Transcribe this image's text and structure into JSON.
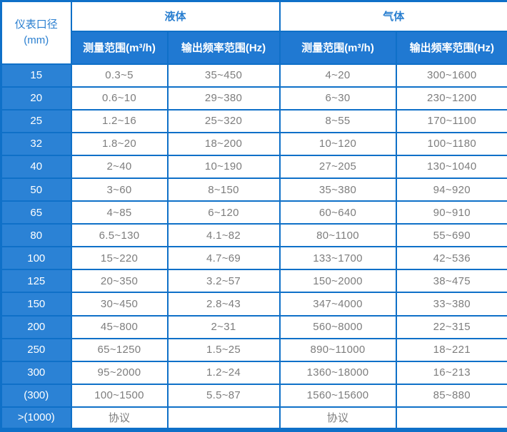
{
  "table": {
    "corner": {
      "line1": "仪表口径",
      "line2": "(mm)"
    },
    "groups": [
      {
        "label": "液体",
        "columns": [
          "测量范围(m³/h)",
          "输出频率范围(Hz)"
        ]
      },
      {
        "label": "气体",
        "columns": [
          "测量范围(m³/h)",
          "输出频率范围(Hz)"
        ]
      }
    ],
    "rows": [
      {
        "size": "15",
        "liquid_range": "0.3~5",
        "liquid_freq": "35~450",
        "gas_range": "4~20",
        "gas_freq": "300~1600"
      },
      {
        "size": "20",
        "liquid_range": "0.6~10",
        "liquid_freq": "29~380",
        "gas_range": "6~30",
        "gas_freq": "230~1200"
      },
      {
        "size": "25",
        "liquid_range": "1.2~16",
        "liquid_freq": "25~320",
        "gas_range": "8~55",
        "gas_freq": "170~1100"
      },
      {
        "size": "32",
        "liquid_range": "1.8~20",
        "liquid_freq": "18~200",
        "gas_range": "10~120",
        "gas_freq": "100~1180"
      },
      {
        "size": "40",
        "liquid_range": "2~40",
        "liquid_freq": "10~190",
        "gas_range": "27~205",
        "gas_freq": "130~1040"
      },
      {
        "size": "50",
        "liquid_range": "3~60",
        "liquid_freq": "8~150",
        "gas_range": "35~380",
        "gas_freq": "94~920"
      },
      {
        "size": "65",
        "liquid_range": "4~85",
        "liquid_freq": "6~120",
        "gas_range": "60~640",
        "gas_freq": "90~910"
      },
      {
        "size": "80",
        "liquid_range": "6.5~130",
        "liquid_freq": "4.1~82",
        "gas_range": "80~1100",
        "gas_freq": "55~690"
      },
      {
        "size": "100",
        "liquid_range": "15~220",
        "liquid_freq": "4.7~69",
        "gas_range": "133~1700",
        "gas_freq": "42~536"
      },
      {
        "size": "125",
        "liquid_range": "20~350",
        "liquid_freq": "3.2~57",
        "gas_range": "150~2000",
        "gas_freq": "38~475"
      },
      {
        "size": "150",
        "liquid_range": "30~450",
        "liquid_freq": "2.8~43",
        "gas_range": "347~4000",
        "gas_freq": "33~380"
      },
      {
        "size": "200",
        "liquid_range": "45~800",
        "liquid_freq": "2~31",
        "gas_range": "560~8000",
        "gas_freq": "22~315"
      },
      {
        "size": "250",
        "liquid_range": "65~1250",
        "liquid_freq": "1.5~25",
        "gas_range": "890~11000",
        "gas_freq": "18~221"
      },
      {
        "size": "300",
        "liquid_range": "95~2000",
        "liquid_freq": "1.2~24",
        "gas_range": "1360~18000",
        "gas_freq": "16~213"
      },
      {
        "size": "(300)",
        "liquid_range": "100~1500",
        "liquid_freq": "5.5~87",
        "gas_range": "1560~15600",
        "gas_freq": "85~880"
      },
      {
        "size": ">(1000)",
        "liquid_range": "协议",
        "liquid_freq": "",
        "gas_range": "协议",
        "gas_freq": ""
      }
    ]
  },
  "colors": {
    "border_blue": "#0f70c8",
    "header_blue": "#2079d2",
    "row_header_blue": "#2b82d5",
    "header_text_blue": "#2a7fd0",
    "cell_text_gray": "#7d7d7d",
    "background": "#ffffff"
  }
}
